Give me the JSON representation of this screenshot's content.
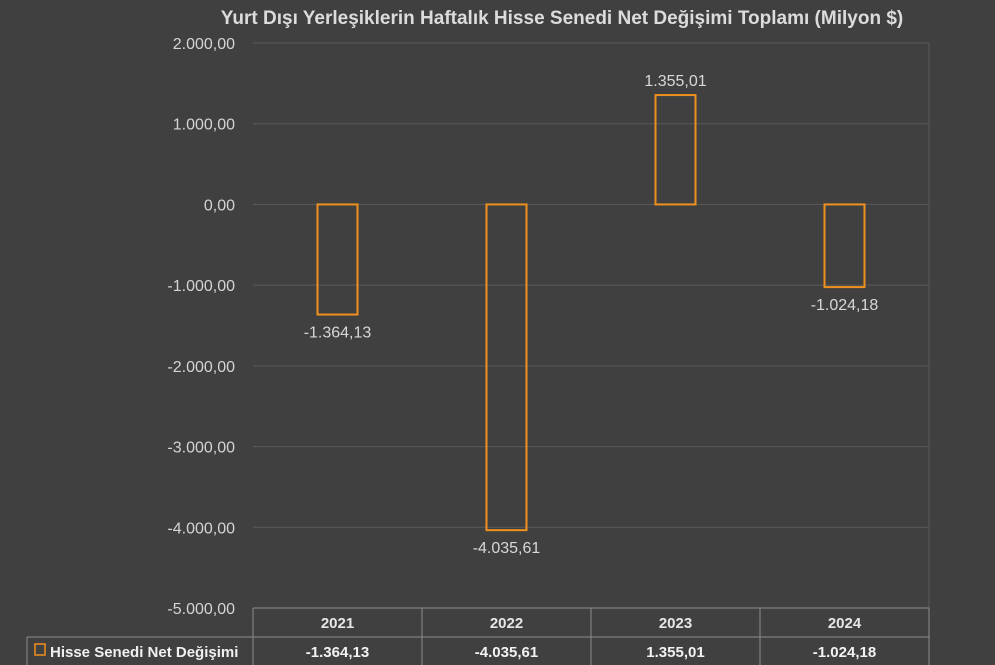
{
  "chart_data": {
    "type": "bar",
    "title": "Yurt Dışı Yerleşiklerin Haftalık Hisse Senedi Net Değişimi Toplamı (Milyon $)",
    "categories": [
      "2021",
      "2022",
      "2023",
      "2024"
    ],
    "series": [
      {
        "name": "Hisse Senedi Net Değişimi",
        "values": [
          -1364.13,
          -4035.61,
          1355.01,
          -1024.18
        ],
        "value_labels": [
          "-1.364,13",
          "-4.035,61",
          "1.355,01",
          "-1.024,18"
        ]
      }
    ],
    "y_ticks": [
      2000,
      1000,
      0,
      -1000,
      -2000,
      -3000,
      -4000,
      -5000
    ],
    "y_tick_labels": [
      "2.000,00",
      "1.000,00",
      "0,00",
      "-1.000,00",
      "-2.000,00",
      "-3.000,00",
      "-4.000,00",
      "-5.000,00"
    ],
    "ylim": [
      -5000,
      2000
    ],
    "grid": true,
    "data_table": true,
    "colors": {
      "background": "#404040",
      "bar_stroke": "#f0901e",
      "grid": "#5a5a5a",
      "table_border": "#8c8c8c"
    }
  }
}
